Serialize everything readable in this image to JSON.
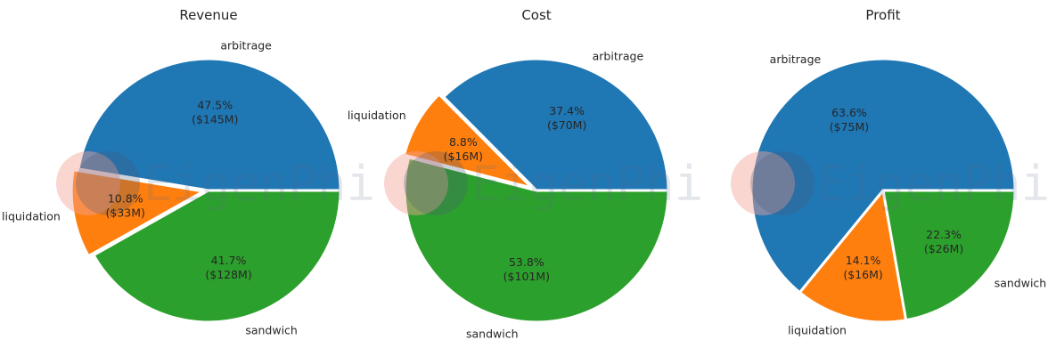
{
  "watermark": "EigenPhi",
  "colors": {
    "arbitrage": "#1f77b4",
    "liquidation": "#ff7f0e",
    "sandwich": "#2ca02c"
  },
  "chart_data": [
    {
      "type": "pie",
      "title": "Revenue",
      "categories": [
        "arbitrage",
        "liquidation",
        "sandwich"
      ],
      "values": [
        145,
        33,
        128
      ],
      "percent_labels": [
        "47.5%",
        "10.8%",
        "41.7%"
      ],
      "value_labels": [
        "($145M)",
        "($33M)",
        "($128M)"
      ],
      "start_angle_deg": 0,
      "explode": [
        0,
        0.04,
        0
      ]
    },
    {
      "type": "pie",
      "title": "Cost",
      "categories": [
        "arbitrage",
        "liquidation",
        "sandwich"
      ],
      "values": [
        70,
        16,
        101
      ],
      "percent_labels": [
        "37.4%",
        "8.8%",
        "53.8%"
      ],
      "value_labels": [
        "($70M)",
        "($16M)",
        "($101M)"
      ],
      "start_angle_deg": 0,
      "explode": [
        0,
        0.04,
        0
      ]
    },
    {
      "type": "pie",
      "title": "Profit",
      "categories": [
        "arbitrage",
        "liquidation",
        "sandwich"
      ],
      "values": [
        75,
        16,
        26
      ],
      "percent_labels": [
        "63.6%",
        "14.1%",
        "22.3%"
      ],
      "value_labels": [
        "($75M)",
        "($16M)",
        "($26M)"
      ],
      "start_angle_deg": 0,
      "explode": [
        0,
        0,
        0
      ]
    }
  ]
}
